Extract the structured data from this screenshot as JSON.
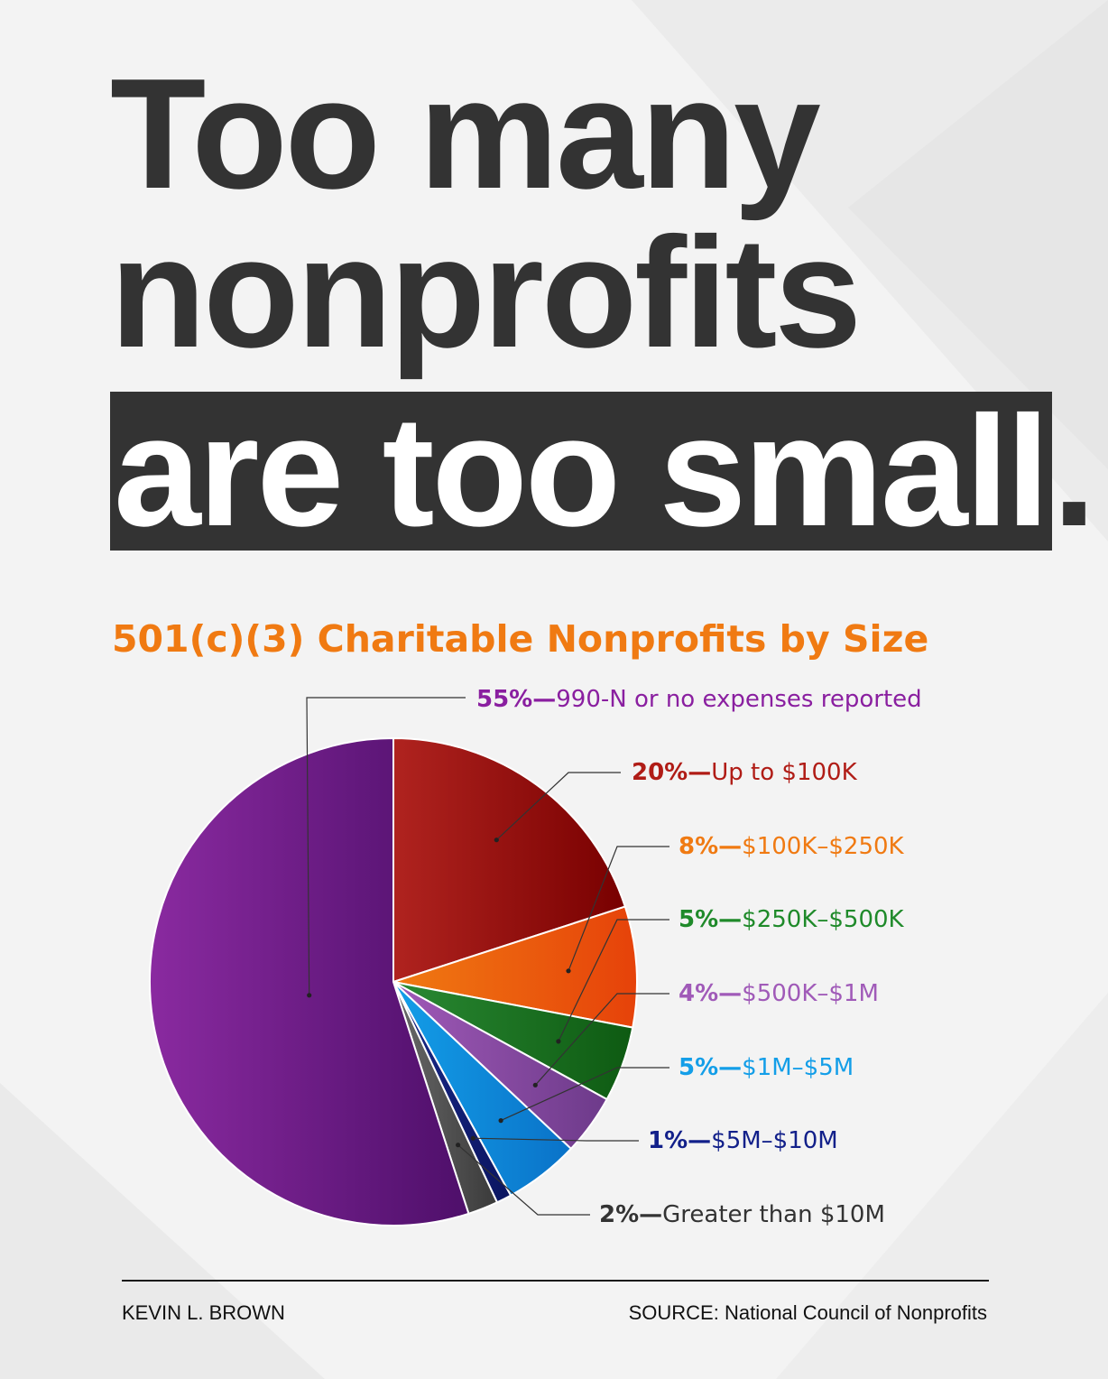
{
  "headline": {
    "line1": "Too many",
    "line2": "nonprofits",
    "highlight": "are too small",
    "period": "."
  },
  "chart_data": {
    "type": "pie",
    "title": "501(c)(3) Charitable Nonprofits by Size",
    "unit": "%",
    "slices": [
      {
        "pct": "20%",
        "label": "Up to $100K",
        "value": 20,
        "color": "#b0231f",
        "color_dark": "#780000"
      },
      {
        "pct": "8%",
        "label": "$100K–$250K",
        "value": 8,
        "color": "#f07a12",
        "color_dark": "#e6420a"
      },
      {
        "pct": "5%",
        "label": "$250K–$500K",
        "value": 5,
        "color": "#2a8a33",
        "color_dark": "#0e5a12"
      },
      {
        "pct": "4%",
        "label": "$500K–$1M",
        "value": 4,
        "color": "#a05ab8",
        "color_dark": "#6d3a8a"
      },
      {
        "pct": "5%",
        "label": "$1M–$5M",
        "value": 5,
        "color": "#139ee8",
        "color_dark": "#0a72c8"
      },
      {
        "pct": "1%",
        "label": "$5M–$10M",
        "value": 1,
        "color": "#1a2a8a",
        "color_dark": "#0b1560"
      },
      {
        "pct": "2%",
        "label": "Greater than $10M",
        "value": 2,
        "color": "#6a6a6a",
        "color_dark": "#3a3a3a"
      },
      {
        "pct": "55%",
        "label": "990-N or no expenses reported",
        "value": 55,
        "color": "#8a2aa0",
        "color_dark": "#4e0f6a"
      }
    ],
    "label_colors": {
      "55%": "#8a1fa0",
      "20%": "#b01c16",
      "8%": "#f07a12",
      "5%a": "#1f8a2a",
      "4%": "#a05ab8",
      "5%b": "#139ee8",
      "1%": "#12208a",
      "2%": "#333333"
    }
  },
  "footer": {
    "author": "KEVIN L. BROWN",
    "source": "SOURCE: National Council of Nonprofits"
  }
}
